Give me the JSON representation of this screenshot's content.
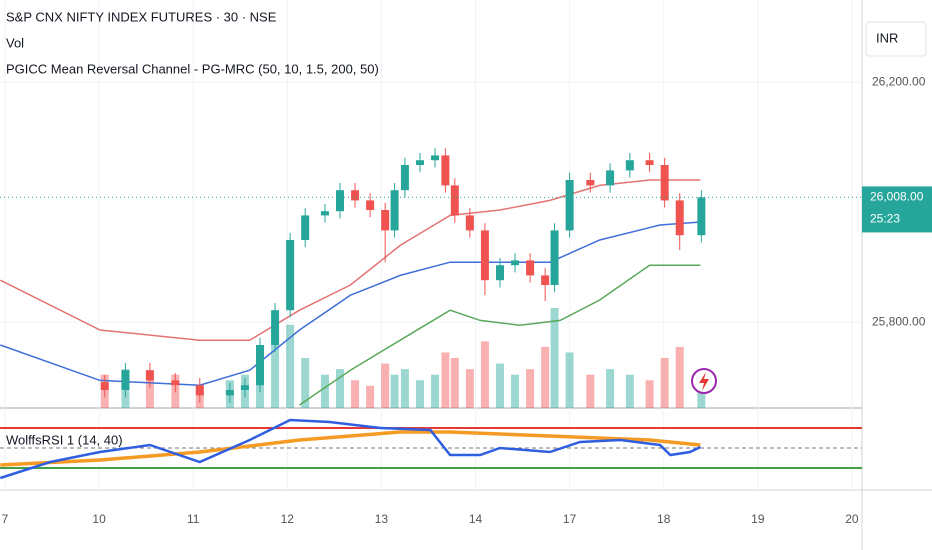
{
  "header": {
    "title": "S&P CNX NIFTY INDEX FUTURES · 30 · NSE",
    "volume_label": "Vol",
    "indicator": "PGICC Mean Reversal Channel - PG-MRC (50, 10, 1.5, 200, 50)",
    "currency": "INR"
  },
  "chart_data": {
    "type": "candlestick",
    "x": [
      1.06,
      1.28,
      1.54,
      1.81,
      2.07,
      2.39,
      2.55,
      2.71,
      2.87,
      3.03,
      3.19,
      3.4,
      3.56,
      3.72,
      3.88,
      4.04,
      4.14,
      4.25,
      4.41,
      4.57,
      4.68,
      4.78,
      4.94,
      5.1,
      5.26,
      5.42,
      5.58,
      5.74,
      5.84,
      6.0,
      6.22,
      6.43,
      6.64,
      6.85,
      7.01,
      7.17,
      7.4
    ],
    "open": [
      25700,
      25687,
      25720,
      25703,
      25695,
      25678,
      25687,
      25695,
      25762,
      25820,
      25937,
      25978,
      25985,
      26020,
      26003,
      25987,
      25953,
      26020,
      26062,
      26070,
      26078,
      26028,
      25978,
      25953,
      25870,
      25895,
      25903,
      25878,
      25862,
      25953,
      26037,
      26028,
      26053,
      26070,
      26062,
      26003,
      25945
    ],
    "high": [
      25712,
      25732,
      25732,
      25715,
      25707,
      25699,
      25707,
      25774,
      25832,
      25949,
      25990,
      25997,
      26032,
      26032,
      26015,
      25999,
      26032,
      26074,
      26082,
      26090,
      26090,
      26040,
      25990,
      25965,
      25907,
      25915,
      25915,
      25890,
      25965,
      26049,
      26049,
      26065,
      26082,
      26082,
      26074,
      26015,
      26020
    ],
    "low": [
      25675,
      25675,
      25691,
      25683,
      25666,
      25666,
      25675,
      25683,
      25750,
      25808,
      25925,
      25966,
      25973,
      25991,
      25975,
      25900,
      25941,
      26008,
      26050,
      26058,
      26016,
      25966,
      25941,
      25845,
      25858,
      25883,
      25866,
      25835,
      25850,
      25941,
      26016,
      26016,
      26041,
      26050,
      25991,
      25920,
      25933
    ],
    "close": [
      25687,
      25720,
      25703,
      25695,
      25678,
      25687,
      25695,
      25762,
      25820,
      25937,
      25978,
      25985,
      26020,
      26003,
      25987,
      25953,
      26020,
      26062,
      26070,
      26078,
      26028,
      25978,
      25953,
      25870,
      25895,
      25903,
      25878,
      25862,
      25953,
      26037,
      26028,
      26053,
      26070,
      26062,
      26003,
      25945,
      26008
    ],
    "volume": [
      30,
      35,
      25,
      30,
      20,
      25,
      30,
      50,
      60,
      75,
      45,
      30,
      35,
      25,
      20,
      40,
      30,
      35,
      25,
      30,
      50,
      45,
      35,
      60,
      40,
      30,
      35,
      55,
      90,
      50,
      30,
      35,
      30,
      25,
      45,
      55,
      25
    ],
    "up_color": "#26a69a",
    "down_color": "#ef5350",
    "ylim": [
      25657,
      26337
    ],
    "yticks": [
      {
        "value": 26200,
        "label": "26,200.00"
      },
      {
        "value": 25800,
        "label": "25,800.00"
      }
    ],
    "last_price": {
      "value": 26008,
      "label": "26,008.00"
    },
    "countdown": "25:23",
    "xlim": [
      -0.053,
      9.107
    ],
    "xticks": [
      {
        "value": 0,
        "label": "7"
      },
      {
        "value": 1,
        "label": "10"
      },
      {
        "value": 2,
        "label": "11"
      },
      {
        "value": 3,
        "label": "12"
      },
      {
        "value": 4,
        "label": "13"
      },
      {
        "value": 5,
        "label": "14"
      },
      {
        "value": 6,
        "label": "17"
      },
      {
        "value": 7,
        "label": "18"
      },
      {
        "value": 8,
        "label": "19"
      },
      {
        "value": 9,
        "label": "20"
      }
    ],
    "overlays": [
      {
        "color": "#e57373",
        "x": [
          -0.05,
          1.01,
          2.07,
          2.6,
          3.13,
          3.67,
          4.2,
          4.73,
          5.26,
          5.79,
          6.32,
          6.85,
          7.39
        ],
        "values": [
          25870,
          25787,
          25770,
          25770,
          25820,
          25862,
          25928,
          25978,
          25987,
          26003,
          26028,
          26037,
          26037
        ]
      },
      {
        "color": "#3f6fd8",
        "x": [
          -0.05,
          1.01,
          2.07,
          2.6,
          3.13,
          3.67,
          4.2,
          4.73,
          5.26,
          5.79,
          6.32,
          6.96,
          7.39
        ],
        "values": [
          25762,
          25703,
          25695,
          25720,
          25787,
          25845,
          25878,
          25900,
          25900,
          25900,
          25937,
          25962,
          25967
        ]
      },
      {
        "color": "#5aa85a",
        "x": [
          3.13,
          3.67,
          4.2,
          4.73,
          5.05,
          5.47,
          5.9,
          6.32,
          6.85,
          7.39
        ],
        "values": [
          25662,
          25720,
          25770,
          25820,
          25803,
          25795,
          25803,
          25837,
          25895,
          25895
        ]
      }
    ],
    "rsi": {
      "label": "WolffsRSI 1 (14, 40)",
      "ylim": [
        8,
        90
      ],
      "levels": [
        {
          "value": 70,
          "color": "#e53935"
        },
        {
          "value": 50,
          "color": "#777777"
        },
        {
          "value": 30,
          "color": "#43a047"
        }
      ],
      "series": [
        {
          "color": "#2f5fe0",
          "x": [
            -0.05,
            0.48,
            1.01,
            1.54,
            2.07,
            2.6,
            3.03,
            3.45,
            3.99,
            4.52,
            4.73,
            5.05,
            5.26,
            5.79,
            6.11,
            6.54,
            6.96,
            7.07,
            7.28,
            7.39
          ],
          "values": [
            20,
            36,
            46,
            53,
            36,
            58,
            78,
            76,
            70,
            68,
            43,
            43,
            50,
            46,
            56,
            58,
            53,
            43,
            46,
            51
          ]
        },
        {
          "color": "#f59a23",
          "x": [
            -0.05,
            1.01,
            2.07,
            3.13,
            4.2,
            4.73,
            5.79,
            6.85,
            7.39
          ],
          "values": [
            33,
            38,
            46,
            58,
            66,
            66,
            62,
            58,
            53
          ]
        }
      ]
    }
  }
}
